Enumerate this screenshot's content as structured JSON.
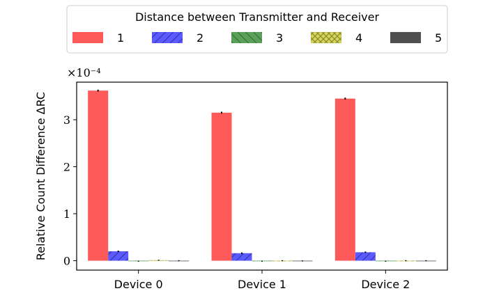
{
  "chart_data": {
    "type": "bar",
    "legend": {
      "title": "Distance between Transmitter and Receiver",
      "placement": "top-center, outside plot"
    },
    "categories": [
      "Device 0",
      "Device 1",
      "Device 2"
    ],
    "ylabel": "Relative Count Difference ΔRC",
    "y_multiplier": "×10⁻⁴",
    "ylim": [
      -0.2,
      3.8
    ],
    "yticks": [
      0,
      1,
      2,
      3
    ],
    "grid": false,
    "series": [
      {
        "name": "1",
        "color": "#ff5a5a",
        "hatch": "none",
        "values": [
          3.62,
          3.15,
          3.45
        ],
        "errors": [
          0.02,
          0.02,
          0.02
        ]
      },
      {
        "name": "2",
        "color": "#5a5aff",
        "hatch": "diag-right",
        "values": [
          0.2,
          0.16,
          0.18
        ],
        "errors": [
          0.015,
          0.015,
          0.015
        ]
      },
      {
        "name": "3",
        "color": "#5aa05a",
        "hatch": "diag-left",
        "values": [
          -0.01,
          -0.01,
          -0.01
        ],
        "errors": [
          0.01,
          0.01,
          0.01
        ]
      },
      {
        "name": "4",
        "color": "#d6d65a",
        "hatch": "cross",
        "values": [
          0.01,
          0.0,
          0.0
        ],
        "errors": [
          0.01,
          0.01,
          0.01
        ]
      },
      {
        "name": "5",
        "color": "#505050",
        "hatch": "none",
        "values": [
          0.0,
          -0.005,
          0.0
        ],
        "errors": [
          0.01,
          0.01,
          0.01
        ]
      }
    ]
  }
}
